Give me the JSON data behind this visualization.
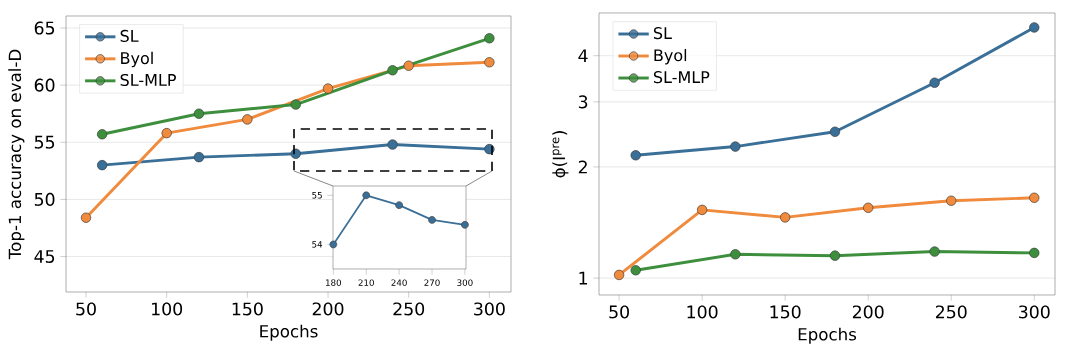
{
  "chart_data": [
    {
      "type": "line",
      "xlabel": "Epochs",
      "ylabel": "Top-1 accuracy on eval-D",
      "xlim": [
        37.6,
        313.4
      ],
      "ylim": [
        41.9,
        66.05
      ],
      "xticks": [
        50,
        100,
        150,
        200,
        250,
        300
      ],
      "yticks": [
        45,
        50,
        55,
        60,
        65
      ],
      "grid": "y",
      "legend": "top left",
      "marker": "circle",
      "series": [
        {
          "name": "SL",
          "color": "#3a6f97",
          "x": [
            60,
            120,
            180,
            240,
            300
          ],
          "values": [
            53.0,
            53.7,
            54.0,
            54.8,
            54.4
          ]
        },
        {
          "name": "Byol",
          "color": "#f08a3c",
          "x": [
            50,
            100,
            150,
            200,
            250,
            300
          ],
          "values": [
            48.4,
            55.8,
            57.0,
            59.7,
            61.7,
            62.0
          ]
        },
        {
          "name": "SL-MLP",
          "color": "#3d8f3d",
          "x": [
            60,
            120,
            180,
            240,
            300
          ],
          "values": [
            55.7,
            57.5,
            58.3,
            61.3,
            64.1
          ]
        }
      ]
    },
    {
      "type": "line",
      "xlim": [
        179.7,
        301
      ],
      "ylim": [
        53.5,
        55.19
      ],
      "xticks": [
        180,
        210,
        240,
        270,
        300
      ],
      "yticks": [
        54,
        55
      ],
      "marker": "circle",
      "series": [
        {
          "color": "#3a6f97",
          "x": [
            180,
            210,
            240,
            270,
            300
          ],
          "values": [
            54.0,
            55.0,
            54.8,
            54.5,
            54.4
          ]
        }
      ]
    },
    {
      "type": "line",
      "xlabel": "Epochs",
      "ylabel": "ϕ(I$^{pre}$)",
      "log": "y",
      "xlim": [
        37.9,
        312.5
      ],
      "ylim": [
        0.9,
        5.22
      ],
      "xticks": [
        50,
        100,
        150,
        200,
        250,
        300
      ],
      "yticks": [
        1,
        2,
        3,
        4
      ],
      "grid": "y",
      "legend": "top left",
      "marker": "circle",
      "series": [
        {
          "name": "SL",
          "color": "#3a6f97",
          "x": [
            60,
            120,
            180,
            240,
            300
          ],
          "values": [
            2.15,
            2.27,
            2.49,
            3.38,
            4.77
          ]
        },
        {
          "name": "Byol",
          "color": "#f08a3c",
          "x": [
            50,
            100,
            150,
            200,
            250,
            300
          ],
          "values": [
            1.02,
            1.53,
            1.46,
            1.55,
            1.62,
            1.65
          ]
        },
        {
          "name": "SL-MLP",
          "color": "#3d8f3d",
          "x": [
            60,
            120,
            180,
            240,
            300
          ],
          "values": [
            1.05,
            1.16,
            1.15,
            1.18,
            1.17
          ]
        }
      ]
    }
  ]
}
